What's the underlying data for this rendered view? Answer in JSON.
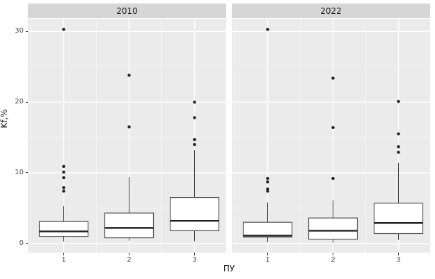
{
  "figure": {
    "background": "#ffffff"
  },
  "chart_data": {
    "type": "boxplot",
    "title": "",
    "xlabel": "ПУ",
    "ylabel": "Kf,%",
    "x_categories": [
      "1",
      "2",
      "3"
    ],
    "yticks": [
      0,
      10,
      20,
      30
    ],
    "yminor": [
      5,
      15,
      25
    ],
    "ylim": [
      -1.3,
      31.8
    ],
    "grid": true,
    "legend": false,
    "facets": [
      {
        "label": "2010",
        "groups": [
          {
            "category": "1",
            "whisker_low": 0.3,
            "q1": 1.0,
            "median": 1.7,
            "q3": 3.1,
            "whisker_high": 5.3,
            "outliers": [
              7.4,
              7.9,
              9.3,
              10.1,
              10.9,
              30.3
            ]
          },
          {
            "category": "2",
            "whisker_low": 0.4,
            "q1": 0.8,
            "median": 2.2,
            "q3": 4.3,
            "whisker_high": 9.4,
            "outliers": [
              16.5,
              23.8
            ]
          },
          {
            "category": "3",
            "whisker_low": 0.3,
            "q1": 1.8,
            "median": 3.2,
            "q3": 6.5,
            "whisker_high": 13.2,
            "outliers": [
              14.0,
              14.7,
              17.8,
              20.0
            ]
          }
        ]
      },
      {
        "label": "2022",
        "groups": [
          {
            "category": "1",
            "whisker_low": 0.2,
            "q1": 0.9,
            "median": 1.1,
            "q3": 3.0,
            "whisker_high": 5.8,
            "outliers": [
              7.4,
              7.7,
              8.7,
              9.2,
              30.3
            ]
          },
          {
            "category": "2",
            "whisker_low": 0.1,
            "q1": 0.6,
            "median": 1.8,
            "q3": 3.6,
            "whisker_high": 6.1,
            "outliers": [
              9.2,
              16.4,
              23.4
            ]
          },
          {
            "category": "3",
            "whisker_low": 0.5,
            "q1": 1.4,
            "median": 2.9,
            "q3": 5.7,
            "whisker_high": 11.4,
            "outliers": [
              12.9,
              13.7,
              15.5,
              20.1
            ]
          }
        ]
      }
    ]
  },
  "colors": {
    "panel_bg": "#ebebeb",
    "strip_bg": "#d6d6d6",
    "grid_major": "#ffffff",
    "grid_minor": "#f7f7f7",
    "box_fill": "#ffffff",
    "box_border": "#545454",
    "median": "#1f1f1f",
    "whisker": "#3a3a3a",
    "outlier": "#212121",
    "axis_text": "#4d4d4d",
    "axis_title": "#1a1a1a",
    "tick": "#333333"
  }
}
